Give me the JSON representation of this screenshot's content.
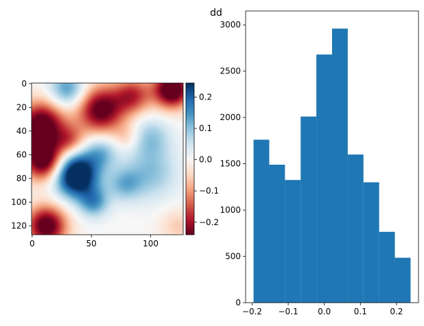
{
  "figure": {
    "suptitle": "dd"
  },
  "chart_data": [
    {
      "type": "heatmap",
      "title": "",
      "xlabel": "",
      "ylabel": "",
      "colormap": "RdBu",
      "xlim": [
        0,
        127
      ],
      "ylim": [
        127,
        0
      ],
      "xticks": [
        0,
        50,
        100
      ],
      "yticks": [
        0,
        20,
        40,
        60,
        80,
        100,
        120
      ],
      "grid": false,
      "colorbar": {
        "ticks": [
          -0.2,
          -0.1,
          0.0,
          0.1,
          0.2
        ],
        "tick_labels": [
          "−0.2",
          "−0.1",
          "0.0",
          "0.1",
          "0.2"
        ],
        "range": [
          -0.24,
          0.245
        ]
      },
      "blobs": [
        {
          "x": 37,
          "y": 77,
          "sigma": 13,
          "amp": 0.34
        },
        {
          "x": 58,
          "y": 58,
          "sigma": 10,
          "amp": 0.11
        },
        {
          "x": 78,
          "y": 85,
          "sigma": 10,
          "amp": 0.1
        },
        {
          "x": 52,
          "y": 100,
          "sigma": 9,
          "amp": 0.14
        },
        {
          "x": 100,
          "y": 75,
          "sigma": 16,
          "amp": 0.1
        },
        {
          "x": 100,
          "y": 45,
          "sigma": 12,
          "amp": 0.09
        },
        {
          "x": 30,
          "y": 5,
          "sigma": 11,
          "amp": 0.15
        },
        {
          "x": 8,
          "y": 35,
          "sigma": 14,
          "amp": -0.28
        },
        {
          "x": 10,
          "y": 65,
          "sigma": 12,
          "amp": -0.28
        },
        {
          "x": 12,
          "y": 120,
          "sigma": 12,
          "amp": -0.27
        },
        {
          "x": 58,
          "y": 22,
          "sigma": 14,
          "amp": -0.26
        },
        {
          "x": 85,
          "y": 10,
          "sigma": 11,
          "amp": -0.17
        },
        {
          "x": 118,
          "y": 5,
          "sigma": 11,
          "amp": -0.3
        },
        {
          "x": 80,
          "y": 45,
          "sigma": 8,
          "amp": -0.06
        },
        {
          "x": 123,
          "y": 120,
          "sigma": 10,
          "amp": -0.06
        },
        {
          "x": 32,
          "y": 48,
          "sigma": 9,
          "amp": -0.12
        }
      ]
    },
    {
      "type": "bar",
      "subtype": "histogram",
      "title": "",
      "xlabel": "",
      "ylabel": "",
      "bin_edges": [
        -0.196,
        -0.1525,
        -0.109,
        -0.0655,
        -0.022,
        0.0215,
        0.065,
        0.1085,
        0.152,
        0.1955,
        0.239
      ],
      "values": [
        1760,
        1490,
        1325,
        2010,
        2680,
        2960,
        1600,
        1300,
        765,
        485
      ],
      "xlim": [
        -0.218,
        0.261
      ],
      "ylim": [
        0,
        3150
      ],
      "xticks": [
        -0.2,
        -0.1,
        0.0,
        0.1,
        0.2
      ],
      "xtick_labels": [
        "−0.2",
        "−0.1",
        "0.0",
        "0.1",
        "0.2"
      ],
      "yticks": [
        0,
        500,
        1000,
        1500,
        2000,
        2500,
        3000
      ],
      "color": "#1f77b4",
      "grid": false
    }
  ]
}
